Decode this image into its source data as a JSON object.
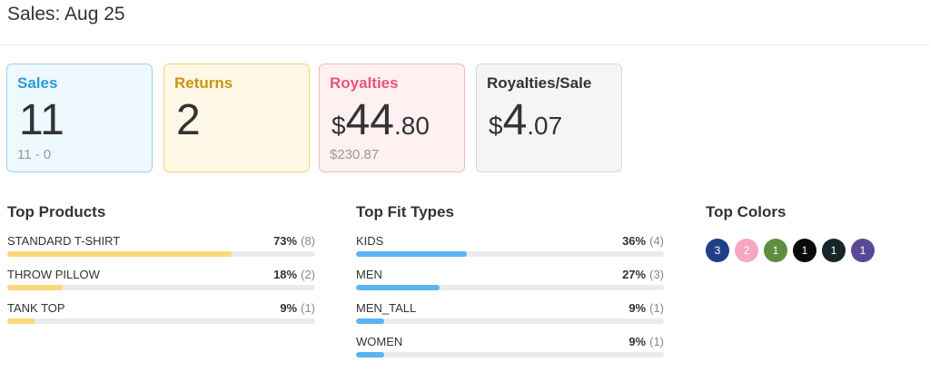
{
  "header": {
    "title": "Sales: Aug 25"
  },
  "cards": {
    "sales": {
      "title": "Sales",
      "value": "11",
      "sub": "11 - 0",
      "color": "#2d9bd6"
    },
    "returns": {
      "title": "Returns",
      "value": "2",
      "color": "#c99510"
    },
    "royalties": {
      "title": "Royalties",
      "currency": "$",
      "whole": "44",
      "decimal": ".80",
      "sub": "$230.87",
      "color": "#e5557b"
    },
    "royalties_per_sale": {
      "title": "Royalties/Sale",
      "currency": "$",
      "whole": "4",
      "decimal": ".07"
    }
  },
  "top_products": {
    "title": "Top Products",
    "items": [
      {
        "label": "STANDARD T-SHIRT",
        "pct": "73%",
        "count": "(8)",
        "fill": 0.73
      },
      {
        "label": "THROW PILLOW",
        "pct": "18%",
        "count": "(2)",
        "fill": 0.18
      },
      {
        "label": "TANK TOP",
        "pct": "9%",
        "count": "(1)",
        "fill": 0.09
      }
    ]
  },
  "top_fit_types": {
    "title": "Top Fit Types",
    "items": [
      {
        "label": "KIDS",
        "pct": "36%",
        "count": "(4)",
        "fill": 0.36
      },
      {
        "label": "MEN",
        "pct": "27%",
        "count": "(3)",
        "fill": 0.27
      },
      {
        "label": "MEN_TALL",
        "pct": "9%",
        "count": "(1)",
        "fill": 0.09
      },
      {
        "label": "WOMEN",
        "pct": "9%",
        "count": "(1)",
        "fill": 0.09
      }
    ]
  },
  "top_colors": {
    "title": "Top Colors",
    "items": [
      {
        "count": "3",
        "color": "#1f3f87"
      },
      {
        "count": "2",
        "color": "#f5a6c1"
      },
      {
        "count": "1",
        "color": "#5e8f3e"
      },
      {
        "count": "1",
        "color": "#0a0a0a"
      },
      {
        "count": "1",
        "color": "#18252b"
      },
      {
        "count": "1",
        "color": "#5a4a96"
      }
    ]
  }
}
